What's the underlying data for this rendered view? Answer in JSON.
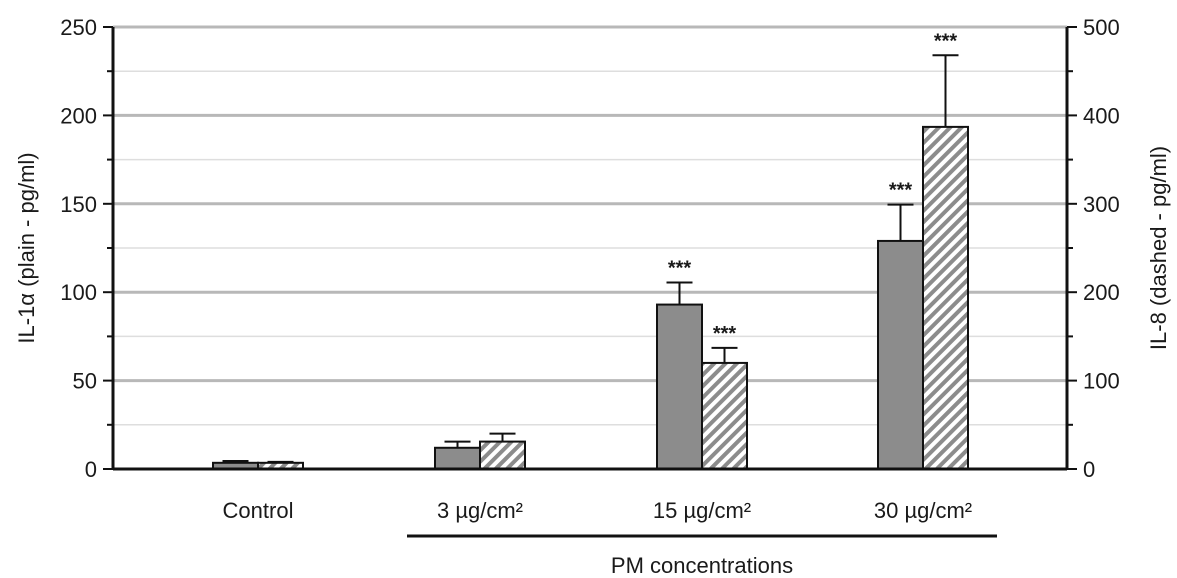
{
  "chart_data": {
    "type": "bar",
    "categories": [
      "Control",
      "3 µg/cm²",
      "15 µg/cm²",
      "30 µg/cm²"
    ],
    "category_group_label": "PM concentrations",
    "left_axis": {
      "label": "IL-1α (plain - pg/ml)",
      "ylim": [
        0,
        250
      ],
      "ticks": [
        "0",
        "50",
        "100",
        "150",
        "200",
        "250"
      ]
    },
    "right_axis": {
      "label": "IL-8 (dashed - pg/ml)",
      "ylim": [
        0,
        500
      ],
      "ticks": [
        "0",
        "100",
        "200",
        "300",
        "400",
        "500"
      ]
    },
    "series": [
      {
        "axis": "left",
        "style": "plain",
        "color": "#8c8c8c",
        "values": [
          3.5,
          12,
          93,
          129
        ],
        "error": [
          1,
          3.5,
          12.5,
          20.5
        ],
        "significance": [
          "",
          "",
          "***",
          "***"
        ]
      },
      {
        "axis": "right",
        "style": "dashed",
        "color": "#8c8c8c",
        "values": [
          7,
          31,
          120,
          387
        ],
        "error": [
          1,
          9,
          17,
          81
        ],
        "significance": [
          "",
          "",
          "***",
          "***"
        ]
      }
    ],
    "grid": true
  }
}
